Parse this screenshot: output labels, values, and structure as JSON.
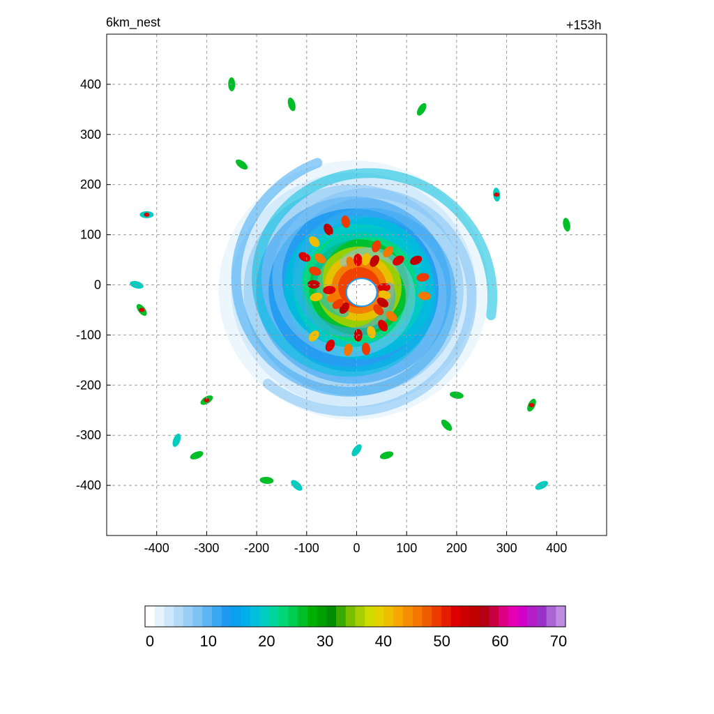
{
  "chart_data": {
    "type": "heatmap",
    "title_left": "6km_nest",
    "title_right": "+153h",
    "xlabel": "",
    "ylabel": "",
    "xlim": [
      -500,
      500
    ],
    "ylim": [
      -500,
      500
    ],
    "x_ticks": [
      -400,
      -300,
      -200,
      -100,
      0,
      100,
      200,
      300,
      400
    ],
    "y_ticks": [
      400,
      300,
      200,
      100,
      0,
      -100,
      -200,
      -300,
      -400
    ],
    "grid": true,
    "colorbar": {
      "ticks": [
        0,
        10,
        20,
        30,
        40,
        50,
        60,
        70
      ],
      "range": [
        0,
        70
      ],
      "colors": [
        "#ffffff",
        "#e6f3fc",
        "#cce7fa",
        "#b3dbf8",
        "#99cff6",
        "#7fc3f4",
        "#5db5f3",
        "#3aa7f2",
        "#1e9af0",
        "#0aa0f0",
        "#00aeea",
        "#00bedc",
        "#00ccc0",
        "#00d69c",
        "#00d878",
        "#00cc50",
        "#00be28",
        "#00b000",
        "#00a000",
        "#008c00",
        "#3aaa00",
        "#78c000",
        "#a8d000",
        "#d0dc00",
        "#e6d200",
        "#f0be00",
        "#f4a800",
        "#f49000",
        "#f47800",
        "#f05a00",
        "#ee3c00",
        "#e61e00",
        "#dc0000",
        "#cc0000",
        "#c00000",
        "#b40014",
        "#c80040",
        "#dc0080",
        "#e600b4",
        "#d200c8",
        "#b41ec8",
        "#9a32c8",
        "#aa64d6",
        "#be8ce0"
      ]
    }
  }
}
